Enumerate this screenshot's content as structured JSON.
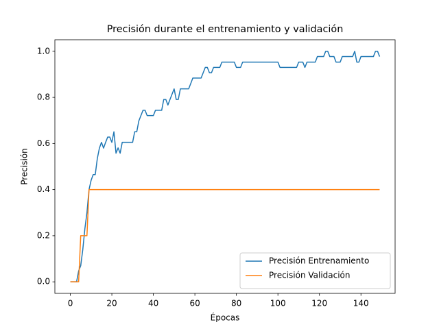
{
  "chart_data": {
    "type": "line",
    "title": "Precisión durante el entrenamiento y validación",
    "x_label": "Épocas",
    "y_label": "Precisión",
    "x": [
      0,
      1,
      2,
      3,
      4,
      5,
      6,
      7,
      8,
      9,
      10,
      11,
      12,
      13,
      14,
      15,
      16,
      17,
      18,
      19,
      20,
      21,
      22,
      23,
      24,
      25,
      26,
      27,
      28,
      29,
      30,
      31,
      32,
      33,
      34,
      35,
      36,
      37,
      38,
      39,
      40,
      41,
      42,
      43,
      44,
      45,
      46,
      47,
      48,
      49,
      50,
      51,
      52,
      53,
      54,
      55,
      56,
      57,
      58,
      59,
      60,
      61,
      62,
      63,
      64,
      65,
      66,
      67,
      68,
      69,
      70,
      71,
      72,
      73,
      74,
      75,
      76,
      77,
      78,
      79,
      80,
      81,
      82,
      83,
      84,
      85,
      86,
      87,
      88,
      89,
      90,
      91,
      92,
      93,
      94,
      95,
      96,
      97,
      98,
      99,
      100,
      101,
      102,
      103,
      104,
      105,
      106,
      107,
      108,
      109,
      110,
      111,
      112,
      113,
      114,
      115,
      116,
      117,
      118,
      119,
      120,
      121,
      122,
      123,
      124,
      125,
      126,
      127,
      128,
      129,
      130,
      131,
      132,
      133,
      134,
      135,
      136,
      137,
      138,
      139,
      140,
      141,
      142,
      143,
      144,
      145,
      146,
      147,
      148,
      149
    ],
    "series": [
      {
        "name": "Precisión Entrenamiento",
        "color": "#1f77b4",
        "values": [
          0,
          0,
          0,
          0,
          0.047,
          0.07,
          0.14,
          0.23,
          0.3,
          0.4,
          0.44,
          0.465,
          0.465,
          0.535,
          0.58,
          0.605,
          0.58,
          0.605,
          0.628,
          0.628,
          0.605,
          0.651,
          0.558,
          0.581,
          0.558,
          0.605,
          0.605,
          0.605,
          0.605,
          0.605,
          0.605,
          0.651,
          0.651,
          0.698,
          0.721,
          0.744,
          0.744,
          0.721,
          0.721,
          0.721,
          0.721,
          0.744,
          0.744,
          0.744,
          0.744,
          0.791,
          0.791,
          0.767,
          0.791,
          0.814,
          0.837,
          0.791,
          0.791,
          0.837,
          0.837,
          0.837,
          0.837,
          0.837,
          0.86,
          0.884,
          0.884,
          0.884,
          0.884,
          0.884,
          0.907,
          0.93,
          0.93,
          0.907,
          0.907,
          0.93,
          0.93,
          0.93,
          0.93,
          0.953,
          0.953,
          0.953,
          0.953,
          0.953,
          0.953,
          0.953,
          0.93,
          0.93,
          0.93,
          0.953,
          0.953,
          0.953,
          0.953,
          0.953,
          0.953,
          0.953,
          0.953,
          0.953,
          0.953,
          0.953,
          0.953,
          0.953,
          0.953,
          0.953,
          0.953,
          0.953,
          0.953,
          0.93,
          0.93,
          0.93,
          0.93,
          0.93,
          0.93,
          0.93,
          0.93,
          0.93,
          0.953,
          0.953,
          0.953,
          0.93,
          0.953,
          0.953,
          0.953,
          0.953,
          0.953,
          0.977,
          0.977,
          0.977,
          0.977,
          1.0,
          1.0,
          0.977,
          0.977,
          0.977,
          0.953,
          0.953,
          0.953,
          0.977,
          0.977,
          0.977,
          0.977,
          0.977,
          0.977,
          1.0,
          0.953,
          0.953,
          0.977,
          0.977,
          0.977,
          0.977,
          0.977,
          0.977,
          0.977,
          1.0,
          1.0,
          0.977
        ]
      },
      {
        "name": "Precisión Validación",
        "color": "#ff7f0e",
        "values": [
          0,
          0,
          0,
          0,
          0,
          0.2,
          0.2,
          0.2,
          0.2,
          0.4,
          0.4,
          0.4,
          0.4,
          0.4,
          0.4,
          0.4,
          0.4,
          0.4,
          0.4,
          0.4,
          0.4,
          0.4,
          0.4,
          0.4,
          0.4,
          0.4,
          0.4,
          0.4,
          0.4,
          0.4,
          0.4,
          0.4,
          0.4,
          0.4,
          0.4,
          0.4,
          0.4,
          0.4,
          0.4,
          0.4,
          0.4,
          0.4,
          0.4,
          0.4,
          0.4,
          0.4,
          0.4,
          0.4,
          0.4,
          0.4,
          0.4,
          0.4,
          0.4,
          0.4,
          0.4,
          0.4,
          0.4,
          0.4,
          0.4,
          0.4,
          0.4,
          0.4,
          0.4,
          0.4,
          0.4,
          0.4,
          0.4,
          0.4,
          0.4,
          0.4,
          0.4,
          0.4,
          0.4,
          0.4,
          0.4,
          0.4,
          0.4,
          0.4,
          0.4,
          0.4,
          0.4,
          0.4,
          0.4,
          0.4,
          0.4,
          0.4,
          0.4,
          0.4,
          0.4,
          0.4,
          0.4,
          0.4,
          0.4,
          0.4,
          0.4,
          0.4,
          0.4,
          0.4,
          0.4,
          0.4,
          0.4,
          0.4,
          0.4,
          0.4,
          0.4,
          0.4,
          0.4,
          0.4,
          0.4,
          0.4,
          0.4,
          0.4,
          0.4,
          0.4,
          0.4,
          0.4,
          0.4,
          0.4,
          0.4,
          0.4,
          0.4,
          0.4,
          0.4,
          0.4,
          0.4,
          0.4,
          0.4,
          0.4,
          0.4,
          0.4,
          0.4,
          0.4,
          0.4,
          0.4,
          0.4,
          0.4,
          0.4,
          0.4,
          0.4,
          0.4,
          0.4,
          0.4,
          0.4,
          0.4,
          0.4,
          0.4,
          0.4,
          0.4,
          0.4,
          0.4
        ]
      }
    ],
    "xlim": [
      -7.45,
      156.45
    ],
    "ylim": [
      -0.05,
      1.05
    ],
    "xticks": [
      0,
      20,
      40,
      60,
      80,
      100,
      120,
      140
    ],
    "yticks": [
      {
        "value": 0,
        "label": "0.0"
      },
      {
        "value": 0.2,
        "label": "0.2"
      },
      {
        "value": 0.4,
        "label": "0.4"
      },
      {
        "value": 0.6,
        "label": "0.6"
      },
      {
        "value": 0.8,
        "label": "0.8"
      },
      {
        "value": 1,
        "label": "1.0"
      }
    ],
    "legend": "lower right",
    "grid": false
  }
}
